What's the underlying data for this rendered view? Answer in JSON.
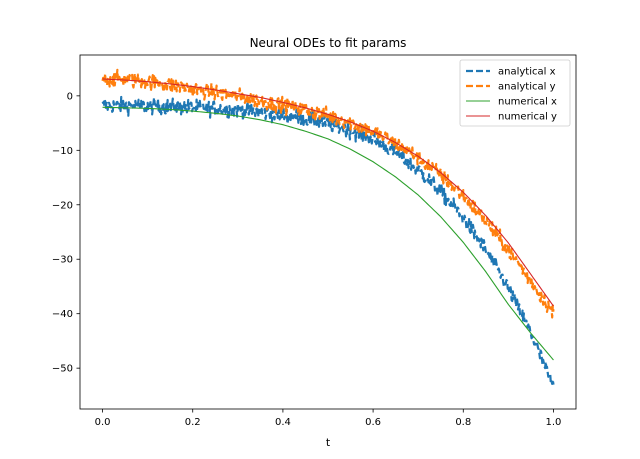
{
  "chart_data": {
    "type": "line",
    "title": "Neural ODEs to fit params",
    "xlabel": "t",
    "ylabel": "",
    "xlim": [
      -0.05,
      1.05
    ],
    "ylim": [
      -57.5,
      7.5
    ],
    "xticks": [
      0.0,
      0.2,
      0.4,
      0.6,
      0.8,
      1.0
    ],
    "xtick_labels": [
      "0.0",
      "0.2",
      "0.4",
      "0.6",
      "0.8",
      "1.0"
    ],
    "yticks": [
      0,
      -10,
      -20,
      -30,
      -40,
      -50
    ],
    "ytick_labels": [
      "0",
      "−10",
      "−20",
      "−30",
      "−40",
      "−50"
    ],
    "grid": false,
    "legend_position": "top-right",
    "series": [
      {
        "name": "analytical x",
        "style": "dashed",
        "color": "#1f77b4",
        "noisy": true,
        "x": [
          0.0,
          0.05,
          0.1,
          0.15,
          0.2,
          0.25,
          0.3,
          0.35,
          0.4,
          0.45,
          0.5,
          0.55,
          0.6,
          0.65,
          0.7,
          0.75,
          0.8,
          0.85,
          0.9,
          0.95,
          1.0
        ],
        "y": [
          -1.8,
          -1.8,
          -1.9,
          -2.0,
          -2.1,
          -2.3,
          -2.6,
          -3.0,
          -3.5,
          -4.2,
          -5.1,
          -6.3,
          -8.0,
          -10.4,
          -13.6,
          -17.6,
          -22.4,
          -28.3,
          -35.3,
          -43.6,
          -53.5
        ]
      },
      {
        "name": "analytical y",
        "style": "dashed",
        "color": "#ff7f0e",
        "noisy": true,
        "x": [
          0.0,
          0.05,
          0.1,
          0.15,
          0.2,
          0.25,
          0.3,
          0.35,
          0.4,
          0.45,
          0.5,
          0.55,
          0.6,
          0.65,
          0.7,
          0.75,
          0.8,
          0.85,
          0.9,
          0.95,
          1.0
        ],
        "y": [
          3.1,
          3.0,
          2.6,
          2.0,
          1.3,
          0.6,
          -0.1,
          -0.9,
          -1.7,
          -2.6,
          -3.6,
          -4.9,
          -6.6,
          -8.7,
          -11.3,
          -14.5,
          -18.4,
          -23.0,
          -28.3,
          -34.0,
          -40.0
        ]
      },
      {
        "name": "numerical x",
        "style": "solid",
        "color": "#2ca02c",
        "x": [
          0.0,
          0.05,
          0.1,
          0.15,
          0.2,
          0.25,
          0.3,
          0.35,
          0.4,
          0.45,
          0.5,
          0.55,
          0.6,
          0.65,
          0.7,
          0.75,
          0.8,
          0.85,
          0.9,
          0.95,
          1.0
        ],
        "y": [
          -2.1,
          -2.2,
          -2.3,
          -2.5,
          -2.8,
          -3.2,
          -3.7,
          -4.4,
          -5.3,
          -6.5,
          -7.9,
          -9.8,
          -12.1,
          -14.9,
          -18.2,
          -22.2,
          -26.9,
          -32.3,
          -38.3,
          -43.6,
          -48.5
        ]
      },
      {
        "name": "numerical y",
        "style": "solid",
        "color": "#d62728",
        "x": [
          0.0,
          0.05,
          0.1,
          0.15,
          0.2,
          0.25,
          0.3,
          0.35,
          0.4,
          0.45,
          0.5,
          0.55,
          0.6,
          0.65,
          0.7,
          0.75,
          0.8,
          0.85,
          0.9,
          0.95,
          1.0
        ],
        "y": [
          3.1,
          2.9,
          2.6,
          2.2,
          1.7,
          1.1,
          0.4,
          -0.3,
          -1.2,
          -2.2,
          -3.4,
          -4.8,
          -6.5,
          -8.6,
          -11.1,
          -14.1,
          -17.7,
          -22.0,
          -27.0,
          -32.8,
          -38.6
        ]
      }
    ]
  }
}
